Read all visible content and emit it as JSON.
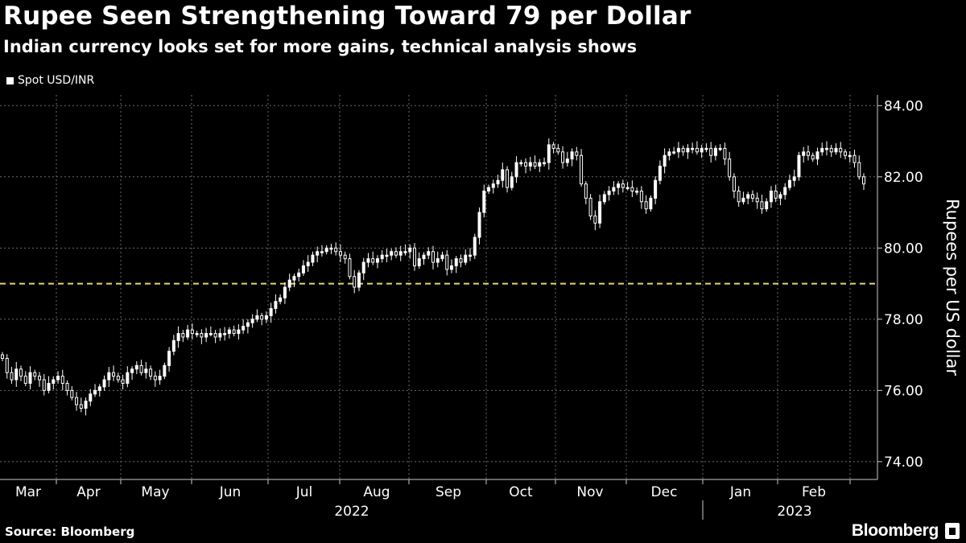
{
  "chart_data": {
    "type": "candlestick",
    "title": "Rupee Seen Strengthening Toward 79 per Dollar",
    "subtitle": "Indian currency looks set for more gains, technical analysis shows",
    "legend": [
      "Spot USD/INR"
    ],
    "ylabel": "Rupees per US dollar",
    "ylim": [
      73.5,
      84.3
    ],
    "yticks": [
      74,
      76,
      78,
      80,
      82,
      84
    ],
    "ytick_labels": [
      "74.00",
      "76.00",
      "78.00",
      "80.00",
      "82.00",
      "84.00"
    ],
    "x_months": [
      "Mar",
      "Apr",
      "May",
      "Jun",
      "Jul",
      "Aug",
      "Sep",
      "Oct",
      "Nov",
      "Dec",
      "Jan",
      "Feb"
    ],
    "x_years": [
      "2022",
      "2023"
    ],
    "reference_line": {
      "value": 79.0,
      "style": "dashed",
      "color": "#e8d56a"
    },
    "series": [
      {
        "name": "Spot USD/INR",
        "approx_daily_close": [
          76.9,
          76.5,
          76.3,
          76.6,
          76.4,
          76.2,
          76.5,
          76.4,
          76.3,
          76.0,
          76.2,
          76.3,
          76.4,
          76.2,
          76.0,
          75.8,
          75.6,
          75.5,
          75.7,
          75.9,
          76.0,
          76.1,
          76.3,
          76.5,
          76.4,
          76.3,
          76.2,
          76.5,
          76.6,
          76.7,
          76.5,
          76.6,
          76.4,
          76.3,
          76.4,
          76.7,
          77.1,
          77.4,
          77.6,
          77.5,
          77.7,
          77.6,
          77.6,
          77.5,
          77.6,
          77.6,
          77.5,
          77.6,
          77.6,
          77.7,
          77.6,
          77.7,
          77.8,
          77.9,
          78.0,
          78.1,
          78.0,
          78.1,
          78.3,
          78.5,
          78.6,
          78.9,
          79.1,
          79.2,
          79.3,
          79.5,
          79.6,
          79.8,
          79.9,
          79.9,
          80.0,
          80.0,
          79.9,
          79.8,
          79.7,
          79.2,
          78.9,
          79.3,
          79.6,
          79.7,
          79.6,
          79.7,
          79.8,
          79.8,
          79.9,
          79.8,
          79.9,
          79.9,
          80.0,
          79.5,
          79.7,
          79.8,
          79.9,
          79.6,
          79.7,
          79.8,
          79.4,
          79.5,
          79.7,
          79.6,
          79.8,
          79.8,
          80.3,
          81.0,
          81.6,
          81.7,
          81.8,
          81.9,
          82.2,
          81.7,
          82.0,
          82.4,
          82.4,
          82.3,
          82.4,
          82.3,
          82.4,
          82.4,
          82.9,
          82.8,
          82.7,
          82.4,
          82.5,
          82.7,
          82.6,
          81.8,
          81.4,
          80.9,
          80.7,
          81.3,
          81.5,
          81.6,
          81.7,
          81.8,
          81.7,
          81.7,
          81.6,
          81.6,
          81.3,
          81.1,
          81.4,
          81.9,
          82.3,
          82.6,
          82.7,
          82.7,
          82.8,
          82.7,
          82.8,
          82.8,
          82.7,
          82.8,
          82.8,
          82.6,
          82.8,
          82.8,
          82.5,
          82.0,
          81.6,
          81.3,
          81.4,
          81.5,
          81.4,
          81.3,
          81.1,
          81.3,
          81.6,
          81.4,
          81.5,
          81.7,
          81.9,
          82.0,
          82.6,
          82.7,
          82.6,
          82.5,
          82.7,
          82.8,
          82.8,
          82.7,
          82.8,
          82.7,
          82.6,
          82.6,
          82.4,
          82.0,
          81.8
        ]
      }
    ]
  },
  "source": "Source: Bloomberg",
  "brand": "Bloomberg",
  "colors": {
    "background": "#000000",
    "text": "#ffffff",
    "grid": "#6a6a6a",
    "reference": "#e8d56a"
  }
}
